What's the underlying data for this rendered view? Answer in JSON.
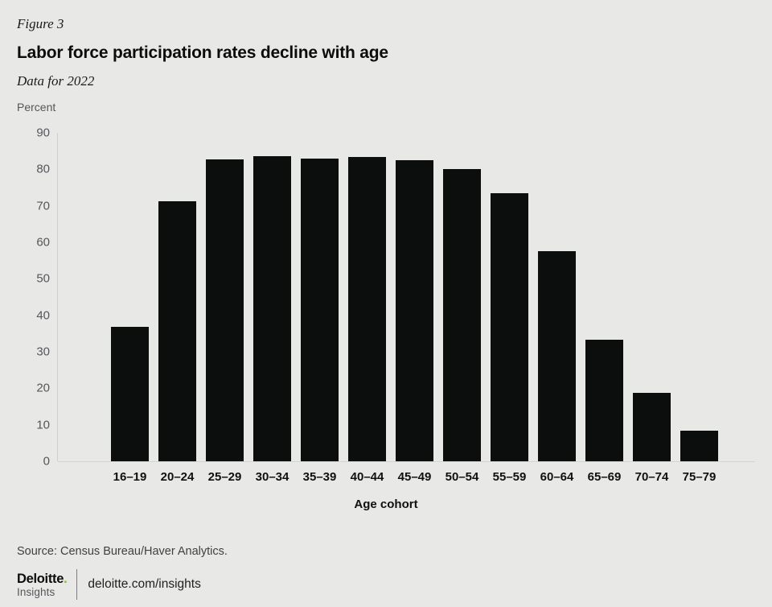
{
  "header": {
    "figure_label": "Figure 3",
    "title": "Labor force participation rates decline with age",
    "subtitle": "Data for 2022",
    "unit_label": "Percent"
  },
  "chart_data": {
    "type": "bar",
    "title": "Labor force participation rates decline with age",
    "subtitle": "Data for 2022",
    "categories": [
      "16–19",
      "20–24",
      "25–29",
      "30–34",
      "35–39",
      "40–44",
      "45–49",
      "50–54",
      "55–59",
      "60–64",
      "65–69",
      "70–74",
      "75–79"
    ],
    "values": [
      36.9,
      71.3,
      82.8,
      83.7,
      83.0,
      83.4,
      82.6,
      80.1,
      73.4,
      57.6,
      33.4,
      18.7,
      8.4
    ],
    "xlabel": "Age cohort",
    "ylabel": "Percent",
    "ylim": [
      0,
      90
    ],
    "yticks": [
      0,
      10,
      20,
      30,
      40,
      50,
      60,
      70,
      80,
      90
    ],
    "grid": false,
    "legend_position": "none",
    "colors": {
      "bar": "#0c0d0d",
      "background": "#e8e9e7",
      "axis_line": "#cfcfcd",
      "tick_text": "#55565a"
    }
  },
  "footer": {
    "source": "Source: Census Bureau/Haver Analytics.",
    "logo_primary": "Deloitte",
    "logo_dot": ".",
    "logo_dot_color": "#86bc25",
    "logo_secondary": "Insights",
    "url": "deloitte.com/insights"
  }
}
